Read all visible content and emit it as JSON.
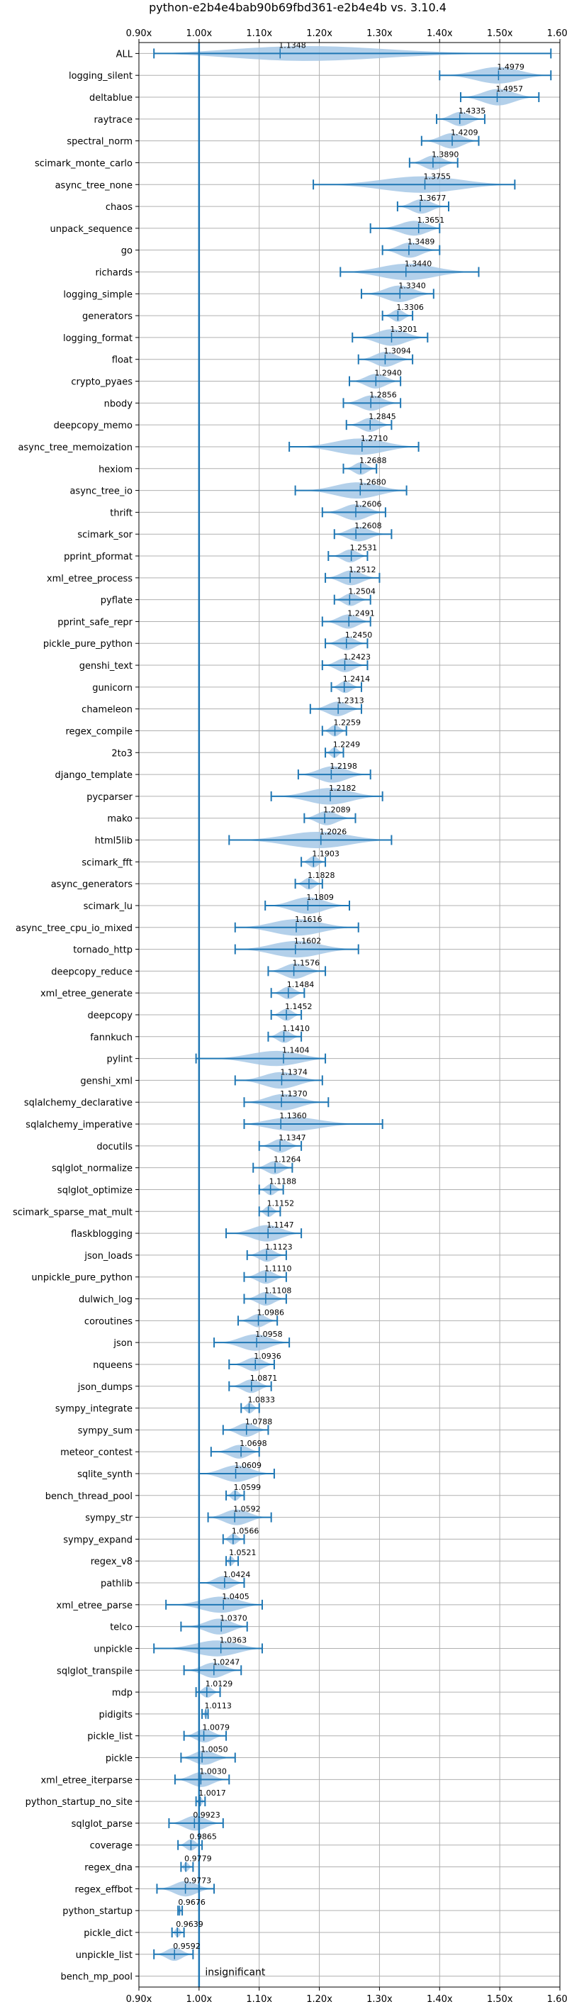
{
  "chart_data": {
    "type": "violin",
    "title": "python-e2b4e4bab90b69fbd361-e2b4e4b vs. 3.10.4",
    "xlabel": "",
    "ylabel": "",
    "xlim": [
      0.9,
      1.6
    ],
    "x_ticks": [
      0.9,
      1.0,
      1.1,
      1.2,
      1.3,
      1.4,
      1.5,
      1.6
    ],
    "x_tick_labels": [
      "0.90x",
      "1.00x",
      "1.10x",
      "1.20x",
      "1.30x",
      "1.40x",
      "1.50x",
      "1.60x"
    ],
    "reference_line": 1.0,
    "grid": true,
    "accent_color": "#1f77b4",
    "violin_color": "#a6c8e6",
    "insignificant_label": "insignificant",
    "benchmarks": [
      {
        "name": "ALL",
        "mean": 1.1348,
        "min": 0.925,
        "max": 1.585
      },
      {
        "name": "logging_silent",
        "mean": 1.4979,
        "min": 1.4,
        "max": 1.585
      },
      {
        "name": "deltablue",
        "mean": 1.4957,
        "min": 1.435,
        "max": 1.565
      },
      {
        "name": "raytrace",
        "mean": 1.4335,
        "min": 1.395,
        "max": 1.475
      },
      {
        "name": "spectral_norm",
        "mean": 1.4209,
        "min": 1.37,
        "max": 1.465
      },
      {
        "name": "scimark_monte_carlo",
        "mean": 1.389,
        "min": 1.35,
        "max": 1.43
      },
      {
        "name": "async_tree_none",
        "mean": 1.3755,
        "min": 1.19,
        "max": 1.525
      },
      {
        "name": "chaos",
        "mean": 1.3677,
        "min": 1.33,
        "max": 1.415
      },
      {
        "name": "unpack_sequence",
        "mean": 1.3651,
        "min": 1.285,
        "max": 1.4
      },
      {
        "name": "go",
        "mean": 1.3489,
        "min": 1.305,
        "max": 1.4
      },
      {
        "name": "richards",
        "mean": 1.344,
        "min": 1.235,
        "max": 1.465
      },
      {
        "name": "logging_simple",
        "mean": 1.334,
        "min": 1.27,
        "max": 1.39
      },
      {
        "name": "generators",
        "mean": 1.3306,
        "min": 1.305,
        "max": 1.355
      },
      {
        "name": "logging_format",
        "mean": 1.3201,
        "min": 1.255,
        "max": 1.38
      },
      {
        "name": "float",
        "mean": 1.3094,
        "min": 1.265,
        "max": 1.355
      },
      {
        "name": "crypto_pyaes",
        "mean": 1.294,
        "min": 1.25,
        "max": 1.335
      },
      {
        "name": "nbody",
        "mean": 1.2856,
        "min": 1.24,
        "max": 1.335
      },
      {
        "name": "deepcopy_memo",
        "mean": 1.2845,
        "min": 1.245,
        "max": 1.32
      },
      {
        "name": "async_tree_memoization",
        "mean": 1.271,
        "min": 1.15,
        "max": 1.365
      },
      {
        "name": "hexiom",
        "mean": 1.2688,
        "min": 1.24,
        "max": 1.295
      },
      {
        "name": "async_tree_io",
        "mean": 1.268,
        "min": 1.16,
        "max": 1.345
      },
      {
        "name": "thrift",
        "mean": 1.2606,
        "min": 1.205,
        "max": 1.31
      },
      {
        "name": "scimark_sor",
        "mean": 1.2608,
        "min": 1.225,
        "max": 1.32
      },
      {
        "name": "pprint_pformat",
        "mean": 1.2531,
        "min": 1.215,
        "max": 1.28
      },
      {
        "name": "xml_etree_process",
        "mean": 1.2512,
        "min": 1.21,
        "max": 1.3
      },
      {
        "name": "pyflate",
        "mean": 1.2504,
        "min": 1.225,
        "max": 1.285
      },
      {
        "name": "pprint_safe_repr",
        "mean": 1.2491,
        "min": 1.205,
        "max": 1.285
      },
      {
        "name": "pickle_pure_python",
        "mean": 1.245,
        "min": 1.21,
        "max": 1.28
      },
      {
        "name": "genshi_text",
        "mean": 1.2423,
        "min": 1.205,
        "max": 1.28
      },
      {
        "name": "gunicorn",
        "mean": 1.2414,
        "min": 1.22,
        "max": 1.27
      },
      {
        "name": "chameleon",
        "mean": 1.2313,
        "min": 1.185,
        "max": 1.27
      },
      {
        "name": "regex_compile",
        "mean": 1.2259,
        "min": 1.205,
        "max": 1.245
      },
      {
        "name": "2to3",
        "mean": 1.2249,
        "min": 1.21,
        "max": 1.24
      },
      {
        "name": "django_template",
        "mean": 1.2198,
        "min": 1.165,
        "max": 1.285
      },
      {
        "name": "pycparser",
        "mean": 1.2182,
        "min": 1.12,
        "max": 1.305
      },
      {
        "name": "mako",
        "mean": 1.2089,
        "min": 1.175,
        "max": 1.26
      },
      {
        "name": "html5lib",
        "mean": 1.2026,
        "min": 1.05,
        "max": 1.32
      },
      {
        "name": "scimark_fft",
        "mean": 1.1903,
        "min": 1.17,
        "max": 1.21
      },
      {
        "name": "async_generators",
        "mean": 1.1828,
        "min": 1.16,
        "max": 1.205
      },
      {
        "name": "scimark_lu",
        "mean": 1.1809,
        "min": 1.11,
        "max": 1.25
      },
      {
        "name": "async_tree_cpu_io_mixed",
        "mean": 1.1616,
        "min": 1.06,
        "max": 1.265
      },
      {
        "name": "tornado_http",
        "mean": 1.1602,
        "min": 1.06,
        "max": 1.265
      },
      {
        "name": "deepcopy_reduce",
        "mean": 1.1576,
        "min": 1.115,
        "max": 1.21
      },
      {
        "name": "xml_etree_generate",
        "mean": 1.1484,
        "min": 1.12,
        "max": 1.175
      },
      {
        "name": "deepcopy",
        "mean": 1.1452,
        "min": 1.12,
        "max": 1.17
      },
      {
        "name": "fannkuch",
        "mean": 1.141,
        "min": 1.115,
        "max": 1.17
      },
      {
        "name": "pylint",
        "mean": 1.1404,
        "min": 0.995,
        "max": 1.21
      },
      {
        "name": "genshi_xml",
        "mean": 1.1374,
        "min": 1.06,
        "max": 1.205
      },
      {
        "name": "sqlalchemy_declarative",
        "mean": 1.137,
        "min": 1.075,
        "max": 1.215
      },
      {
        "name": "sqlalchemy_imperative",
        "mean": 1.136,
        "min": 1.075,
        "max": 1.305
      },
      {
        "name": "docutils",
        "mean": 1.1347,
        "min": 1.1,
        "max": 1.17
      },
      {
        "name": "sqlglot_normalize",
        "mean": 1.1264,
        "min": 1.09,
        "max": 1.155
      },
      {
        "name": "sqlglot_optimize",
        "mean": 1.1188,
        "min": 1.1,
        "max": 1.14
      },
      {
        "name": "scimark_sparse_mat_mult",
        "mean": 1.1152,
        "min": 1.1,
        "max": 1.135
      },
      {
        "name": "flaskblogging",
        "mean": 1.1147,
        "min": 1.045,
        "max": 1.17
      },
      {
        "name": "json_loads",
        "mean": 1.1123,
        "min": 1.08,
        "max": 1.145
      },
      {
        "name": "unpickle_pure_python",
        "mean": 1.111,
        "min": 1.075,
        "max": 1.145
      },
      {
        "name": "dulwich_log",
        "mean": 1.1108,
        "min": 1.075,
        "max": 1.145
      },
      {
        "name": "coroutines",
        "mean": 1.0986,
        "min": 1.065,
        "max": 1.13
      },
      {
        "name": "json",
        "mean": 1.0958,
        "min": 1.025,
        "max": 1.15
      },
      {
        "name": "nqueens",
        "mean": 1.0936,
        "min": 1.05,
        "max": 1.125
      },
      {
        "name": "json_dumps",
        "mean": 1.0871,
        "min": 1.05,
        "max": 1.12
      },
      {
        "name": "sympy_integrate",
        "mean": 1.0833,
        "min": 1.07,
        "max": 1.1
      },
      {
        "name": "sympy_sum",
        "mean": 1.0788,
        "min": 1.04,
        "max": 1.115
      },
      {
        "name": "meteor_contest",
        "mean": 1.0698,
        "min": 1.02,
        "max": 1.1
      },
      {
        "name": "sqlite_synth",
        "mean": 1.0609,
        "min": 1.0,
        "max": 1.125
      },
      {
        "name": "bench_thread_pool",
        "mean": 1.0599,
        "min": 1.045,
        "max": 1.075
      },
      {
        "name": "sympy_str",
        "mean": 1.0592,
        "min": 1.015,
        "max": 1.12
      },
      {
        "name": "sympy_expand",
        "mean": 1.0566,
        "min": 1.04,
        "max": 1.075
      },
      {
        "name": "regex_v8",
        "mean": 1.0521,
        "min": 1.045,
        "max": 1.065
      },
      {
        "name": "pathlib",
        "mean": 1.0424,
        "min": 1.0,
        "max": 1.075
      },
      {
        "name": "xml_etree_parse",
        "mean": 1.0405,
        "min": 0.945,
        "max": 1.105
      },
      {
        "name": "telco",
        "mean": 1.037,
        "min": 0.97,
        "max": 1.08
      },
      {
        "name": "unpickle",
        "mean": 1.0363,
        "min": 0.925,
        "max": 1.105
      },
      {
        "name": "sqlglot_transpile",
        "mean": 1.0247,
        "min": 0.975,
        "max": 1.07
      },
      {
        "name": "mdp",
        "mean": 1.0129,
        "min": 0.995,
        "max": 1.035
      },
      {
        "name": "pidigits",
        "mean": 1.0113,
        "min": 1.005,
        "max": 1.015
      },
      {
        "name": "pickle_list",
        "mean": 1.0079,
        "min": 0.975,
        "max": 1.045
      },
      {
        "name": "pickle",
        "mean": 1.005,
        "min": 0.97,
        "max": 1.06
      },
      {
        "name": "xml_etree_iterparse",
        "mean": 1.003,
        "min": 0.96,
        "max": 1.05
      },
      {
        "name": "python_startup_no_site",
        "mean": 1.0017,
        "min": 0.995,
        "max": 1.01
      },
      {
        "name": "sqlglot_parse",
        "mean": 0.9923,
        "min": 0.95,
        "max": 1.04
      },
      {
        "name": "coverage",
        "mean": 0.9865,
        "min": 0.965,
        "max": 1.005
      },
      {
        "name": "regex_dna",
        "mean": 0.9779,
        "min": 0.97,
        "max": 0.99
      },
      {
        "name": "regex_effbot",
        "mean": 0.9773,
        "min": 0.93,
        "max": 1.025
      },
      {
        "name": "python_startup",
        "mean": 0.9676,
        "min": 0.965,
        "max": 0.972
      },
      {
        "name": "pickle_dict",
        "mean": 0.9639,
        "min": 0.955,
        "max": 0.975
      },
      {
        "name": "unpickle_list",
        "mean": 0.9592,
        "min": 0.925,
        "max": 0.99
      },
      {
        "name": "bench_mp_pool",
        "mean": 1.0,
        "min": 1.0,
        "max": 1.0,
        "insignificant": true
      }
    ]
  }
}
